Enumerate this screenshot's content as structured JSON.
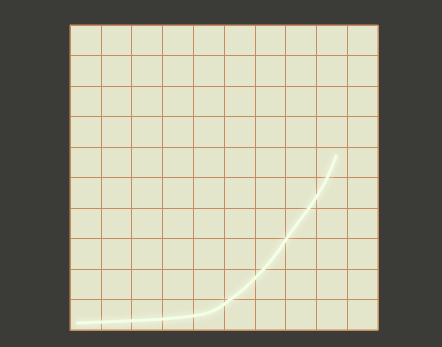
{
  "chart_data": {
    "type": "line",
    "x": [
      -4.8,
      -3.0,
      -1.5,
      -0.8,
      -0.3,
      0.2,
      0.7,
      1.2,
      1.7,
      2.1,
      2.5,
      2.9,
      3.2,
      3.4,
      3.55,
      3.65
    ],
    "values": [
      -4.77,
      -4.7,
      -4.6,
      -4.5,
      -4.35,
      -4.0,
      -3.6,
      -3.1,
      -2.5,
      -1.9,
      -1.35,
      -0.8,
      -0.3,
      0.1,
      0.45,
      0.75
    ],
    "color": "#f2ffe6",
    "xlim": [
      -5,
      5
    ],
    "xticks": [
      -5,
      -4,
      -3,
      -2,
      -1,
      0,
      1,
      2,
      3,
      4,
      5
    ],
    "ylim": [
      -5,
      5
    ],
    "yticks": [
      -5,
      -4,
      -3,
      -2,
      -1,
      0,
      1,
      2,
      3,
      4,
      5
    ],
    "grid": true,
    "tick_labels": false
  }
}
